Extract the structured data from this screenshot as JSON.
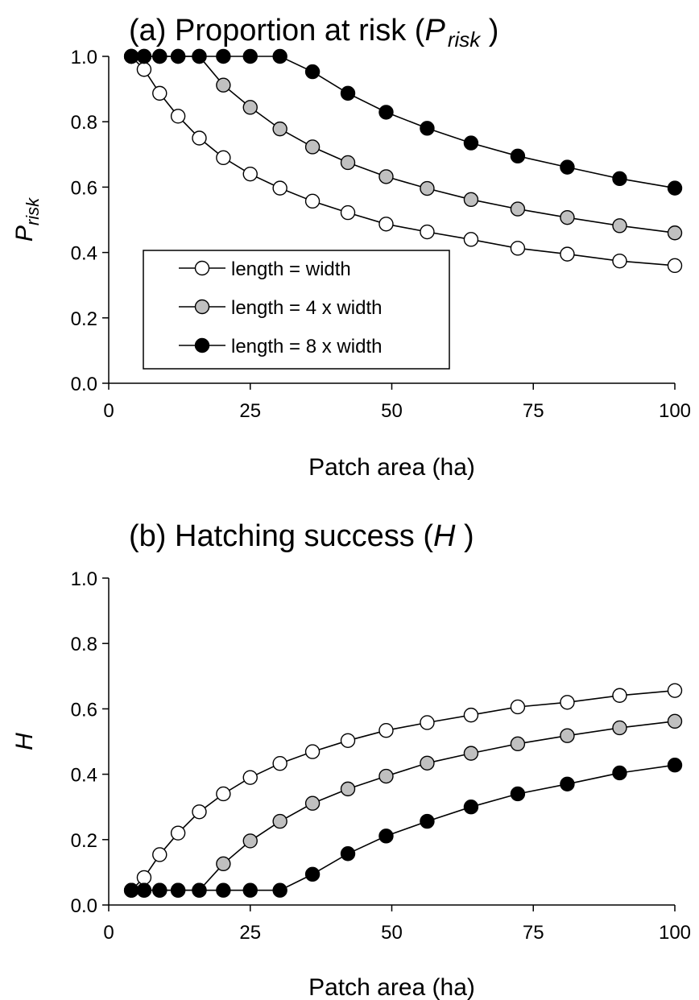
{
  "colors": {
    "length_eq_width": "#ffffff",
    "length_4x_width": "#c0c0c0",
    "length_8x_width": "#000000"
  },
  "chart_data": [
    {
      "type": "line",
      "title": {
        "prefix": "(a) Proportion at risk (",
        "symbol": "P",
        "subscript": "risk",
        "suffix": " )"
      },
      "xlabel": "Patch area (ha)",
      "ylabel": {
        "symbol": "P",
        "subscript": "risk"
      },
      "xlim": [
        0,
        100
      ],
      "ylim": [
        0,
        1.0
      ],
      "xticks": [
        "0",
        "25",
        "50",
        "75",
        "100"
      ],
      "yticks": [
        "0.0",
        "0.2",
        "0.4",
        "0.6",
        "0.8",
        "1.0"
      ],
      "legend": {
        "position": "lower-left"
      },
      "x": [
        4,
        6.25,
        9,
        12.25,
        16,
        20.25,
        25,
        30.25,
        36,
        42.25,
        49,
        56.25,
        64,
        72.25,
        81,
        90.25,
        100
      ],
      "series": [
        {
          "name": "length = width",
          "values": [
            1.0,
            0.96,
            0.887,
            0.817,
            0.75,
            0.69,
            0.64,
            0.597,
            0.557,
            0.522,
            0.487,
            0.463,
            0.44,
            0.413,
            0.395,
            0.374,
            0.36
          ]
        },
        {
          "name": "length = 4 x width",
          "values": [
            1.0,
            1.0,
            1.0,
            1.0,
            1.0,
            0.912,
            0.844,
            0.778,
            0.723,
            0.675,
            0.632,
            0.596,
            0.562,
            0.533,
            0.507,
            0.482,
            0.46
          ]
        },
        {
          "name": "length = 8 x width",
          "values": [
            1.0,
            1.0,
            1.0,
            1.0,
            1.0,
            1.0,
            1.0,
            1.0,
            0.953,
            0.887,
            0.829,
            0.78,
            0.735,
            0.695,
            0.661,
            0.626,
            0.597
          ]
        }
      ]
    },
    {
      "type": "line",
      "title": {
        "prefix": "(b) Hatching success (",
        "symbol": "H",
        "subscript": "",
        "suffix": " )"
      },
      "xlabel": "Patch area (ha)",
      "ylabel": {
        "symbol": "H",
        "subscript": ""
      },
      "xlim": [
        0,
        100
      ],
      "ylim": [
        0,
        1.0
      ],
      "xticks": [
        "0",
        "25",
        "50",
        "75",
        "100"
      ],
      "yticks": [
        "0.0",
        "0.2",
        "0.4",
        "0.6",
        "0.8",
        "1.0"
      ],
      "x": [
        4,
        6.25,
        9,
        12.25,
        16,
        20.25,
        25,
        30.25,
        36,
        42.25,
        49,
        56.25,
        64,
        72.25,
        81,
        90.25,
        100
      ],
      "series": [
        {
          "name": "length = width",
          "values": [
            0.045,
            0.084,
            0.154,
            0.22,
            0.285,
            0.34,
            0.39,
            0.433,
            0.469,
            0.503,
            0.534,
            0.558,
            0.581,
            0.606,
            0.62,
            0.641,
            0.656
          ]
        },
        {
          "name": "length = 4 x width",
          "values": [
            0.045,
            0.045,
            0.045,
            0.045,
            0.045,
            0.126,
            0.196,
            0.256,
            0.311,
            0.355,
            0.394,
            0.434,
            0.464,
            0.493,
            0.518,
            0.542,
            0.562
          ]
        },
        {
          "name": "length = 8 x width",
          "values": [
            0.045,
            0.045,
            0.045,
            0.045,
            0.045,
            0.045,
            0.045,
            0.045,
            0.094,
            0.157,
            0.211,
            0.256,
            0.3,
            0.34,
            0.37,
            0.404,
            0.428
          ]
        }
      ]
    }
  ]
}
